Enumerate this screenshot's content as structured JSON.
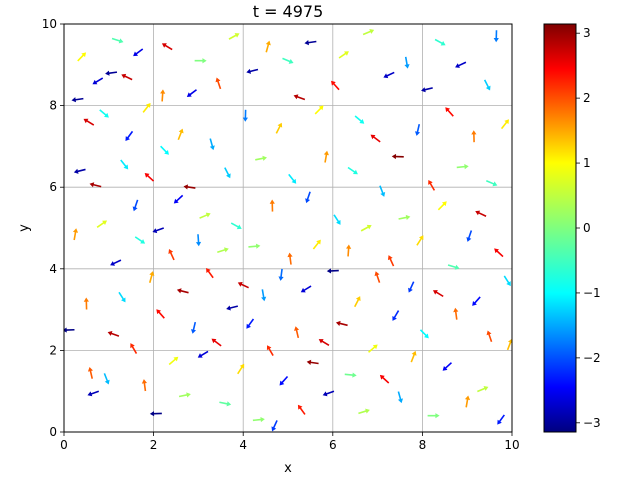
{
  "chart_data": {
    "type": "quiver",
    "title": "t = 4975",
    "xlabel": "x",
    "ylabel": "y",
    "xlim": [
      0,
      10
    ],
    "ylim": [
      0,
      10
    ],
    "xticks": [
      "0",
      "2",
      "4",
      "6",
      "8",
      "10"
    ],
    "yticks": [
      "0",
      "2",
      "4",
      "6",
      "8",
      "10"
    ],
    "grid": true,
    "colorbar": {
      "colormap": "jet",
      "range": [
        -3.14159,
        3.14159
      ],
      "ticks": [
        "3",
        "2",
        "1",
        "0",
        "−1",
        "−2",
        "−3"
      ],
      "tick_values": [
        3,
        2,
        1,
        0,
        -1,
        -2,
        -3
      ],
      "colormap_stops": [
        "#00007f",
        "#0000ff",
        "#007fff",
        "#00ffff",
        "#7fff7f",
        "#ffff00",
        "#ff7f00",
        "#ff0000",
        "#7f0000"
      ]
    },
    "arrow_count": 400,
    "arrows": [
      {
        "x": 0.1,
        "y": 2.5,
        "theta": -3.1
      },
      {
        "x": 0.25,
        "y": 4.85,
        "theta": 1.4
      },
      {
        "x": 0.3,
        "y": 8.15,
        "theta": -3.0
      },
      {
        "x": 0.35,
        "y": 6.4,
        "theta": -2.9
      },
      {
        "x": 0.4,
        "y": 9.2,
        "theta": 0.8
      },
      {
        "x": 0.5,
        "y": 3.15,
        "theta": 1.6
      },
      {
        "x": 0.55,
        "y": 7.6,
        "theta": 2.6
      },
      {
        "x": 0.6,
        "y": 1.45,
        "theta": 1.8
      },
      {
        "x": 0.65,
        "y": 0.95,
        "theta": -2.8
      },
      {
        "x": 0.7,
        "y": 6.05,
        "theta": 2.9
      },
      {
        "x": 0.75,
        "y": 8.6,
        "theta": -2.6
      },
      {
        "x": 0.85,
        "y": 5.1,
        "theta": 0.6
      },
      {
        "x": 0.9,
        "y": 7.8,
        "theta": -0.7
      },
      {
        "x": 0.95,
        "y": 1.3,
        "theta": -1.2
      },
      {
        "x": 1.05,
        "y": 8.8,
        "theta": -3.0
      },
      {
        "x": 1.1,
        "y": 2.4,
        "theta": 2.8
      },
      {
        "x": 1.15,
        "y": 4.15,
        "theta": -2.7
      },
      {
        "x": 1.2,
        "y": 9.6,
        "theta": -0.3
      },
      {
        "x": 1.3,
        "y": 3.3,
        "theta": -1.0
      },
      {
        "x": 1.35,
        "y": 6.55,
        "theta": -0.9
      },
      {
        "x": 1.4,
        "y": 8.7,
        "theta": 2.7
      },
      {
        "x": 1.45,
        "y": 7.25,
        "theta": -2.2
      },
      {
        "x": 1.55,
        "y": 2.05,
        "theta": 2.1
      },
      {
        "x": 1.6,
        "y": 5.55,
        "theta": -1.9
      },
      {
        "x": 1.65,
        "y": 9.3,
        "theta": -2.5
      },
      {
        "x": 1.7,
        "y": 4.7,
        "theta": -0.6
      },
      {
        "x": 1.8,
        "y": 1.15,
        "theta": 1.7
      },
      {
        "x": 1.85,
        "y": 7.95,
        "theta": 0.9
      },
      {
        "x": 1.9,
        "y": 6.25,
        "theta": 2.4
      },
      {
        "x": 1.95,
        "y": 3.8,
        "theta": 1.3
      },
      {
        "x": 2.05,
        "y": 0.45,
        "theta": -3.1
      },
      {
        "x": 2.1,
        "y": 4.95,
        "theta": -2.8
      },
      {
        "x": 2.15,
        "y": 2.9,
        "theta": 2.3
      },
      {
        "x": 2.2,
        "y": 8.25,
        "theta": 1.5
      },
      {
        "x": 2.25,
        "y": 6.9,
        "theta": -0.8
      },
      {
        "x": 2.3,
        "y": 9.45,
        "theta": 2.6
      },
      {
        "x": 2.4,
        "y": 4.35,
        "theta": 2.0
      },
      {
        "x": 2.45,
        "y": 1.75,
        "theta": 0.7
      },
      {
        "x": 2.55,
        "y": 5.7,
        "theta": -2.4
      },
      {
        "x": 2.6,
        "y": 7.3,
        "theta": 1.2
      },
      {
        "x": 2.65,
        "y": 3.45,
        "theta": 2.9
      },
      {
        "x": 2.7,
        "y": 0.9,
        "theta": 0.2
      },
      {
        "x": 2.8,
        "y": 6.0,
        "theta": 3.0
      },
      {
        "x": 2.85,
        "y": 8.3,
        "theta": -2.5
      },
      {
        "x": 2.9,
        "y": 2.55,
        "theta": -1.8
      },
      {
        "x": 3.0,
        "y": 4.7,
        "theta": -1.5
      },
      {
        "x": 3.05,
        "y": 9.1,
        "theta": 0.0
      },
      {
        "x": 3.1,
        "y": 1.9,
        "theta": -2.6
      },
      {
        "x": 3.15,
        "y": 5.3,
        "theta": 0.4
      },
      {
        "x": 3.25,
        "y": 3.9,
        "theta": 2.2
      },
      {
        "x": 3.3,
        "y": 7.05,
        "theta": -1.3
      },
      {
        "x": 3.4,
        "y": 2.2,
        "theta": 2.5
      },
      {
        "x": 3.45,
        "y": 8.55,
        "theta": 1.9
      },
      {
        "x": 3.55,
        "y": 4.45,
        "theta": 0.3
      },
      {
        "x": 3.6,
        "y": 0.7,
        "theta": -0.2
      },
      {
        "x": 3.65,
        "y": 6.35,
        "theta": -1.1
      },
      {
        "x": 3.75,
        "y": 3.05,
        "theta": -2.9
      },
      {
        "x": 3.8,
        "y": 9.7,
        "theta": 0.5
      },
      {
        "x": 3.85,
        "y": 5.05,
        "theta": -0.5
      },
      {
        "x": 3.95,
        "y": 1.55,
        "theta": 1.0
      },
      {
        "x": 4.0,
        "y": 3.6,
        "theta": 2.7
      },
      {
        "x": 4.05,
        "y": 7.75,
        "theta": -1.6
      },
      {
        "x": 4.15,
        "y": 2.65,
        "theta": -2.2
      },
      {
        "x": 4.2,
        "y": 8.85,
        "theta": -2.9
      },
      {
        "x": 4.25,
        "y": 4.55,
        "theta": 0.1
      },
      {
        "x": 4.35,
        "y": 0.3,
        "theta": 0.1
      },
      {
        "x": 4.4,
        "y": 6.7,
        "theta": 0.2
      },
      {
        "x": 4.45,
        "y": 3.35,
        "theta": -1.4
      },
      {
        "x": 4.55,
        "y": 9.45,
        "theta": 1.3
      },
      {
        "x": 4.6,
        "y": 2.0,
        "theta": 2.1
      },
      {
        "x": 4.65,
        "y": 5.55,
        "theta": 1.6
      },
      {
        "x": 4.7,
        "y": 0.15,
        "theta": -2.0
      },
      {
        "x": 4.8,
        "y": 7.45,
        "theta": 1.1
      },
      {
        "x": 4.85,
        "y": 3.85,
        "theta": -1.7
      },
      {
        "x": 4.9,
        "y": 1.25,
        "theta": -2.3
      },
      {
        "x": 5.0,
        "y": 9.1,
        "theta": -0.4
      },
      {
        "x": 5.05,
        "y": 4.25,
        "theta": 1.7
      },
      {
        "x": 5.1,
        "y": 6.2,
        "theta": -0.9
      },
      {
        "x": 5.2,
        "y": 2.45,
        "theta": 1.8
      },
      {
        "x": 5.25,
        "y": 8.2,
        "theta": 2.8
      },
      {
        "x": 5.3,
        "y": 0.55,
        "theta": 2.2
      },
      {
        "x": 5.4,
        "y": 3.5,
        "theta": -2.6
      },
      {
        "x": 5.45,
        "y": 5.75,
        "theta": -1.9
      },
      {
        "x": 5.5,
        "y": 9.55,
        "theta": -3.0
      },
      {
        "x": 5.55,
        "y": 1.7,
        "theta": 3.0
      },
      {
        "x": 5.65,
        "y": 4.6,
        "theta": 0.9
      },
      {
        "x": 5.7,
        "y": 7.9,
        "theta": 0.8
      },
      {
        "x": 5.8,
        "y": 2.2,
        "theta": 2.6
      },
      {
        "x": 5.85,
        "y": 6.75,
        "theta": 1.4
      },
      {
        "x": 5.9,
        "y": 0.95,
        "theta": -2.8
      },
      {
        "x": 6.0,
        "y": 3.95,
        "theta": -3.1
      },
      {
        "x": 6.05,
        "y": 8.5,
        "theta": 2.3
      },
      {
        "x": 6.1,
        "y": 5.2,
        "theta": -1.0
      },
      {
        "x": 6.2,
        "y": 2.65,
        "theta": 2.9
      },
      {
        "x": 6.25,
        "y": 9.25,
        "theta": 0.6
      },
      {
        "x": 6.35,
        "y": 4.45,
        "theta": 1.5
      },
      {
        "x": 6.4,
        "y": 1.4,
        "theta": -0.1
      },
      {
        "x": 6.45,
        "y": 6.4,
        "theta": -0.6
      },
      {
        "x": 6.55,
        "y": 3.2,
        "theta": 1.1
      },
      {
        "x": 6.6,
        "y": 7.65,
        "theta": -0.7
      },
      {
        "x": 6.7,
        "y": 0.5,
        "theta": 0.3
      },
      {
        "x": 6.75,
        "y": 5.0,
        "theta": 0.5
      },
      {
        "x": 6.8,
        "y": 9.8,
        "theta": 0.4
      },
      {
        "x": 6.9,
        "y": 2.05,
        "theta": 0.7
      },
      {
        "x": 6.95,
        "y": 7.2,
        "theta": 2.5
      },
      {
        "x": 7.0,
        "y": 3.8,
        "theta": 1.9
      },
      {
        "x": 7.1,
        "y": 5.9,
        "theta": -1.2
      },
      {
        "x": 7.15,
        "y": 1.3,
        "theta": 2.4
      },
      {
        "x": 7.25,
        "y": 8.75,
        "theta": -2.7
      },
      {
        "x": 7.3,
        "y": 4.2,
        "theta": 2.0
      },
      {
        "x": 7.4,
        "y": 2.85,
        "theta": -2.1
      },
      {
        "x": 7.45,
        "y": 6.75,
        "theta": 3.1
      },
      {
        "x": 7.5,
        "y": 0.85,
        "theta": -1.3
      },
      {
        "x": 7.6,
        "y": 5.25,
        "theta": 0.2
      },
      {
        "x": 7.65,
        "y": 9.05,
        "theta": -1.4
      },
      {
        "x": 7.75,
        "y": 3.55,
        "theta": -2.0
      },
      {
        "x": 7.8,
        "y": 1.85,
        "theta": 1.2
      },
      {
        "x": 7.9,
        "y": 7.4,
        "theta": -1.8
      },
      {
        "x": 7.95,
        "y": 4.7,
        "theta": 1.0
      },
      {
        "x": 8.05,
        "y": 2.4,
        "theta": -0.8
      },
      {
        "x": 8.1,
        "y": 8.4,
        "theta": -2.9
      },
      {
        "x": 8.2,
        "y": 6.05,
        "theta": 2.1
      },
      {
        "x": 8.25,
        "y": 0.4,
        "theta": 0.0
      },
      {
        "x": 8.35,
        "y": 3.4,
        "theta": 2.6
      },
      {
        "x": 8.4,
        "y": 9.55,
        "theta": -0.5
      },
      {
        "x": 8.45,
        "y": 5.55,
        "theta": 0.8
      },
      {
        "x": 8.55,
        "y": 1.6,
        "theta": -2.4
      },
      {
        "x": 8.6,
        "y": 7.85,
        "theta": 2.3
      },
      {
        "x": 8.7,
        "y": 4.05,
        "theta": -0.3
      },
      {
        "x": 8.75,
        "y": 2.9,
        "theta": 1.7
      },
      {
        "x": 8.85,
        "y": 9.0,
        "theta": -2.7
      },
      {
        "x": 8.9,
        "y": 6.5,
        "theta": 0.1
      },
      {
        "x": 9.0,
        "y": 0.75,
        "theta": 1.4
      },
      {
        "x": 9.05,
        "y": 4.8,
        "theta": -1.9
      },
      {
        "x": 9.15,
        "y": 7.25,
        "theta": 1.6
      },
      {
        "x": 9.2,
        "y": 3.2,
        "theta": -2.3
      },
      {
        "x": 9.3,
        "y": 5.35,
        "theta": 2.7
      },
      {
        "x": 9.35,
        "y": 1.05,
        "theta": 0.4
      },
      {
        "x": 9.45,
        "y": 8.5,
        "theta": -1.1
      },
      {
        "x": 9.5,
        "y": 2.35,
        "theta": 1.9
      },
      {
        "x": 9.55,
        "y": 6.1,
        "theta": -0.4
      },
      {
        "x": 9.65,
        "y": 9.7,
        "theta": -1.6
      },
      {
        "x": 9.7,
        "y": 4.4,
        "theta": 2.4
      },
      {
        "x": 9.75,
        "y": 0.3,
        "theta": -2.2
      },
      {
        "x": 9.85,
        "y": 7.55,
        "theta": 0.9
      },
      {
        "x": 9.9,
        "y": 3.7,
        "theta": -1.0
      },
      {
        "x": 9.95,
        "y": 2.15,
        "theta": 1.2
      }
    ]
  }
}
